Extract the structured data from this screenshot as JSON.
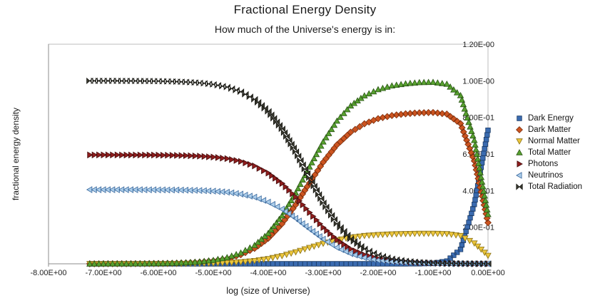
{
  "page": {
    "background": "#ffffff",
    "axis_color": "#8c8c8c",
    "border_color": "#bdbdbd",
    "tick_text_color": "#222222"
  },
  "chart_data": {
    "type": "scatter",
    "title": "Fractional Energy Density",
    "subtitle": "How much of the Universe's energy is in:",
    "xlabel": "log (size of Universe)",
    "ylabel": "fractional energy density",
    "xlim": [
      -8,
      0
    ],
    "ylim": [
      0,
      1.2
    ],
    "grid": false,
    "legend_position": "right",
    "x_tick_values": [
      -8,
      -7,
      -6,
      -5,
      -4,
      -3,
      -2,
      -1,
      0
    ],
    "x_tick_labels": [
      "-8.00E+00",
      "-7.00E+00",
      "-6.00E+00",
      "-5.00E+00",
      "-4.00E+00",
      "-3.00E+00",
      "-2.00E+00",
      "-1.00E+00",
      "0.00E+00"
    ],
    "y_tick_values": [
      0.2,
      0.4,
      0.6,
      0.8,
      1.0,
      1.2
    ],
    "y_tick_labels": [
      "2.00E-01",
      "4.00E-01",
      "6.00E-01",
      "8.00E-01",
      "1.00E-00",
      "1.20E-00"
    ],
    "x": [
      -7.25,
      -7,
      -6.75,
      -6.5,
      -6.25,
      -6,
      -5.75,
      -5.5,
      -5.25,
      -5,
      -4.75,
      -4.5,
      -4.25,
      -4,
      -3.75,
      -3.5,
      -3.25,
      -3,
      -2.75,
      -2.5,
      -2.25,
      -2,
      -1.75,
      -1.5,
      -1.25,
      -1,
      -0.75,
      -0.5,
      -0.25,
      0
    ],
    "series": [
      {
        "name": "Dark Energy",
        "marker": "square",
        "fill": "#3a6bb0",
        "stroke": "#1b3b66",
        "values": [
          0,
          0,
          0,
          0,
          0,
          0,
          0,
          0,
          0,
          0,
          0,
          0,
          0,
          0,
          0,
          0,
          0,
          0,
          0,
          0,
          0,
          0,
          0,
          0.0001,
          0.0005,
          0.0027,
          0.0149,
          0.0787,
          0.3245,
          0.7299
        ]
      },
      {
        "name": "Dark Matter",
        "marker": "diamond",
        "fill": "#cc5420",
        "stroke": "#7a2e0d",
        "values": [
          0.0001,
          0.0002,
          0.0003,
          0.0005,
          0.0009,
          0.0017,
          0.0029,
          0.0052,
          0.0092,
          0.0163,
          0.0286,
          0.0496,
          0.0842,
          0.1389,
          0.2186,
          0.3227,
          0.441,
          0.5553,
          0.6502,
          0.7193,
          0.765,
          0.7933,
          0.8103,
          0.8199,
          0.8253,
          0.8267,
          0.8182,
          0.7663,
          0.5622,
          0.2249
        ]
      },
      {
        "name": "Normal Matter",
        "marker": "triangle-down",
        "fill": "#ecc63c",
        "stroke": "#8a7216",
        "values": [
          0,
          0,
          0.0001,
          0.0001,
          0.0002,
          0.0003,
          0.0006,
          0.0011,
          0.0019,
          0.0033,
          0.0057,
          0.0099,
          0.0169,
          0.0278,
          0.0438,
          0.0647,
          0.0884,
          0.1113,
          0.1303,
          0.1442,
          0.1534,
          0.1591,
          0.1624,
          0.1644,
          0.1654,
          0.1657,
          0.164,
          0.1536,
          0.1127,
          0.0451
        ]
      },
      {
        "name": "Total  Matter",
        "marker": "triangle-up",
        "fill": "#57a12f",
        "stroke": "#2b5516",
        "values": [
          0.0001,
          0.0002,
          0.0004,
          0.0006,
          0.0011,
          0.002,
          0.0035,
          0.0063,
          0.0111,
          0.0196,
          0.0343,
          0.0595,
          0.1011,
          0.1667,
          0.2624,
          0.3874,
          0.5294,
          0.6667,
          0.7805,
          0.8635,
          0.9184,
          0.9524,
          0.9727,
          0.9843,
          0.9907,
          0.9924,
          0.9822,
          0.9199,
          0.6749,
          0.27
        ]
      },
      {
        "name": "Photons",
        "marker": "triangle-right",
        "fill": "#8f1d1d",
        "stroke": "#440d0d",
        "values": [
          0.5949,
          0.5949,
          0.5948,
          0.5946,
          0.5943,
          0.5938,
          0.5929,
          0.5913,
          0.5884,
          0.5833,
          0.5746,
          0.5596,
          0.5348,
          0.4958,
          0.4389,
          0.3645,
          0.28,
          0.1983,
          0.1306,
          0.0812,
          0.0486,
          0.0283,
          0.0162,
          0.0093,
          0.0052,
          0.003,
          0.0017,
          0.0009,
          0.0004,
          0.0001
        ]
      },
      {
        "name": "Neutrinos",
        "marker": "triangle-left",
        "fill": "#abcdea",
        "stroke": "#39689d",
        "values": [
          0.405,
          0.4049,
          0.4048,
          0.4048,
          0.4046,
          0.4042,
          0.4036,
          0.4025,
          0.4005,
          0.3971,
          0.3911,
          0.3809,
          0.3641,
          0.3375,
          0.2987,
          0.2481,
          0.1906,
          0.135,
          0.0889,
          0.0553,
          0.033,
          0.0193,
          0.0111,
          0.0063,
          0.0036,
          0.002,
          0.0011,
          0.0006,
          0.0002,
          0
        ]
      },
      {
        "name": "Total  Radiation",
        "marker": "bowtie",
        "fill": "#3a3a30",
        "stroke": "#14140f",
        "values": [
          0.9999,
          0.9998,
          0.9996,
          0.9994,
          0.9989,
          0.998,
          0.9965,
          0.9937,
          0.9889,
          0.9804,
          0.9657,
          0.9405,
          0.8989,
          0.8333,
          0.7376,
          0.6126,
          0.4706,
          0.3333,
          0.2195,
          0.1365,
          0.0816,
          0.0476,
          0.0273,
          0.0156,
          0.0088,
          0.005,
          0.0028,
          0.0015,
          0.0006,
          0.0001
        ]
      }
    ]
  }
}
